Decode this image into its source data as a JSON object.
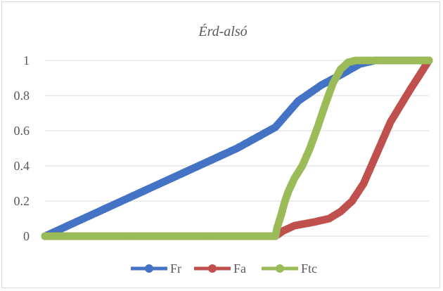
{
  "chart_data": {
    "type": "line",
    "title": "Érd-alsó",
    "xlabel": "",
    "ylabel": "",
    "ylim": [
      0,
      1
    ],
    "xlim": [
      0,
      100
    ],
    "y_ticks": [
      "0",
      "0.2",
      "0.4",
      "0.6",
      "0.8",
      "1"
    ],
    "grid": true,
    "legend_position": "bottom",
    "series": [
      {
        "name": "Fr",
        "color": "#4472c4",
        "points": [
          [
            0,
            0
          ],
          [
            10,
            0.1
          ],
          [
            20,
            0.2
          ],
          [
            30,
            0.3
          ],
          [
            40,
            0.4
          ],
          [
            50,
            0.5
          ],
          [
            60,
            0.62
          ],
          [
            66,
            0.77
          ],
          [
            72,
            0.86
          ],
          [
            78,
            0.93
          ],
          [
            82,
            0.98
          ],
          [
            86,
            1.0
          ],
          [
            100,
            1.0
          ]
        ]
      },
      {
        "name": "Fa",
        "color": "#c0504d",
        "points": [
          [
            0,
            0
          ],
          [
            60,
            0
          ],
          [
            62,
            0.03
          ],
          [
            65,
            0.06
          ],
          [
            70,
            0.08
          ],
          [
            74,
            0.1
          ],
          [
            77,
            0.14
          ],
          [
            80,
            0.2
          ],
          [
            83,
            0.3
          ],
          [
            86,
            0.45
          ],
          [
            90,
            0.65
          ],
          [
            95,
            0.83
          ],
          [
            100,
            1.0
          ]
        ]
      },
      {
        "name": "Ftc",
        "color": "#9bbb59",
        "points": [
          [
            0,
            0
          ],
          [
            60,
            0
          ],
          [
            60.5,
            0.05
          ],
          [
            61.5,
            0.12
          ],
          [
            62.5,
            0.2
          ],
          [
            63.5,
            0.26
          ],
          [
            65,
            0.33
          ],
          [
            67,
            0.4
          ],
          [
            69,
            0.5
          ],
          [
            71,
            0.62
          ],
          [
            73,
            0.75
          ],
          [
            75,
            0.87
          ],
          [
            77,
            0.95
          ],
          [
            79,
            0.99
          ],
          [
            81,
            1.0
          ],
          [
            100,
            1.0
          ]
        ]
      }
    ]
  }
}
